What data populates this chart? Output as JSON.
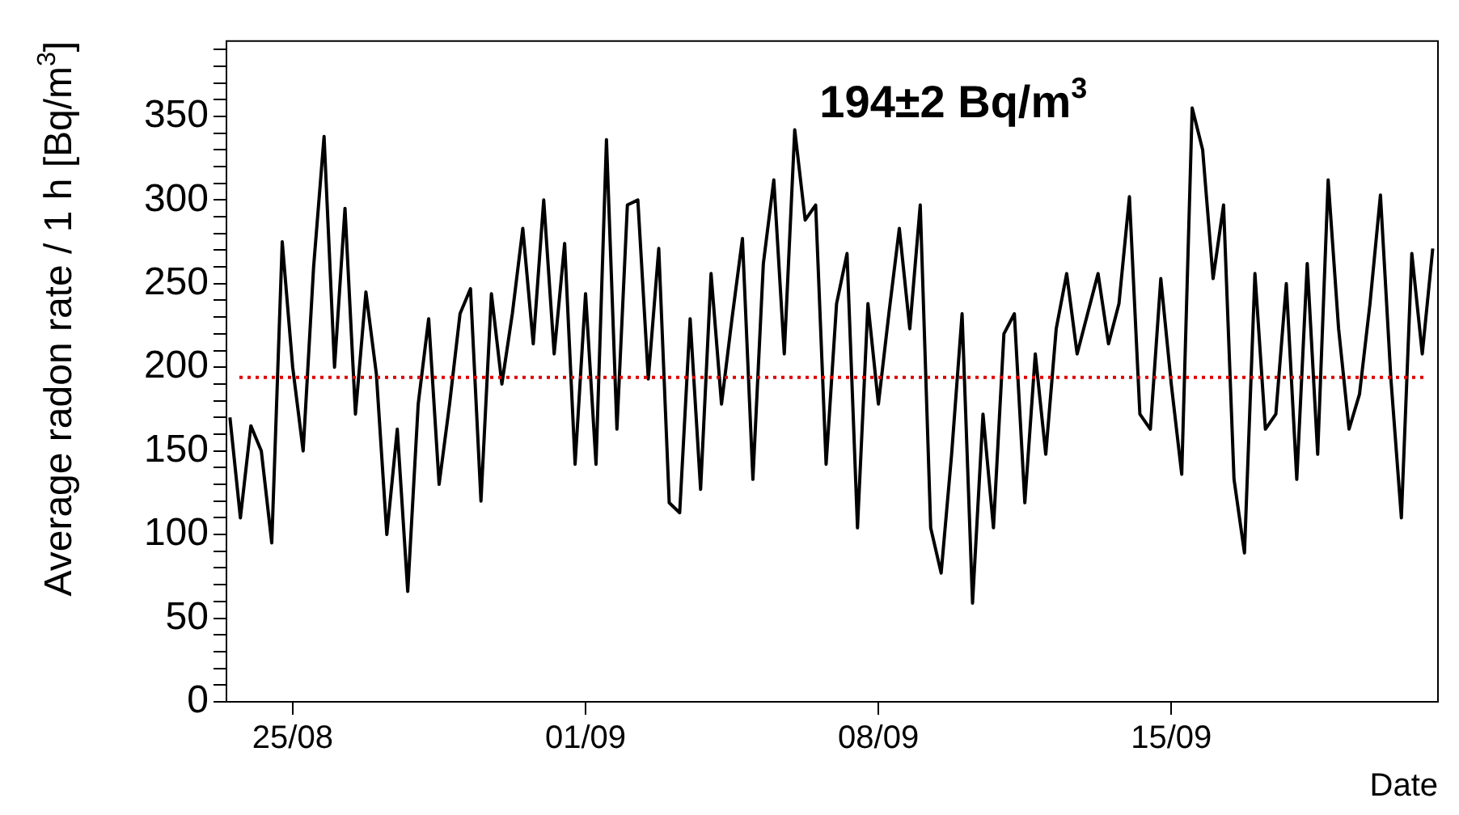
{
  "chart_data": {
    "type": "line",
    "xlabel": "Date",
    "ylabel": "Average radon rate / 1 h [Bq/m$^{3}$]",
    "x": [
      "--08-23T12:00",
      "--08-23T18:00",
      "--08-24T00:00",
      "--08-24T06:00",
      "--08-24T12:00",
      "--08-24T18:00",
      "--08-25T00:00",
      "--08-25T06:00",
      "--08-25T12:00",
      "--08-25T18:00",
      "--08-26T00:00",
      "--08-26T06:00",
      "--08-26T12:00",
      "--08-26T18:00",
      "--08-27T00:00",
      "--08-27T06:00",
      "--08-27T12:00",
      "--08-27T18:00",
      "--08-28T00:00",
      "--08-28T06:00",
      "--08-28T12:00",
      "--08-28T18:00",
      "--08-29T00:00",
      "--08-29T06:00",
      "--08-29T12:00",
      "--08-29T18:00",
      "--08-30T00:00",
      "--08-30T06:00",
      "--08-30T12:00",
      "--08-30T18:00",
      "--08-31T00:00",
      "--08-31T06:00",
      "--08-31T12:00",
      "--08-31T18:00",
      "--09-01T00:00",
      "--09-01T06:00",
      "--09-01T12:00",
      "--09-01T18:00",
      "--09-02T00:00",
      "--09-02T06:00",
      "--09-02T12:00",
      "--09-02T18:00",
      "--09-03T00:00",
      "--09-03T06:00",
      "--09-03T12:00",
      "--09-03T18:00",
      "--09-04T00:00",
      "--09-04T06:00",
      "--09-04T12:00",
      "--09-04T18:00",
      "--09-05T00:00",
      "--09-05T06:00",
      "--09-05T12:00",
      "--09-05T18:00",
      "--09-06T00:00",
      "--09-06T06:00",
      "--09-06T12:00",
      "--09-06T18:00",
      "--09-07T00:00",
      "--09-07T06:00",
      "--09-07T12:00",
      "--09-07T18:00",
      "--09-08T00:00",
      "--09-08T06:00",
      "--09-08T12:00",
      "--09-08T18:00",
      "--09-09T00:00",
      "--09-09T06:00",
      "--09-09T12:00",
      "--09-09T18:00",
      "--09-10T00:00",
      "--09-10T06:00",
      "--09-10T12:00",
      "--09-10T18:00",
      "--09-11T00:00",
      "--09-11T06:00",
      "--09-11T12:00",
      "--09-11T18:00",
      "--09-12T00:00",
      "--09-12T06:00",
      "--09-12T12:00",
      "--09-12T18:00",
      "--09-13T00:00",
      "--09-13T06:00",
      "--09-13T12:00",
      "--09-13T18:00",
      "--09-14T00:00",
      "--09-14T06:00",
      "--09-14T12:00",
      "--09-14T18:00",
      "--09-15T00:00",
      "--09-15T06:00",
      "--09-15T12:00",
      "--09-15T18:00",
      "--09-16T00:00",
      "--09-16T06:00",
      "--09-16T12:00",
      "--09-16T18:00",
      "--09-17T00:00",
      "--09-17T06:00",
      "--09-17T12:00",
      "--09-17T18:00",
      "--09-18T00:00",
      "--09-18T06:00",
      "--09-18T12:00",
      "--09-18T18:00",
      "--09-19T00:00",
      "--09-19T06:00",
      "--09-19T12:00",
      "--09-19T18:00",
      "--09-20T00:00",
      "--09-20T06:00",
      "--09-20T12:00",
      "--09-20T18:00",
      "--09-21T00:00",
      "--09-21T06:00"
    ],
    "series": [
      {
        "color": "#000000",
        "values": [
          170,
          110,
          165,
          150,
          95,
          275,
          200,
          150,
          260,
          338,
          200,
          295,
          172,
          245,
          196,
          100,
          163,
          66,
          178,
          229,
          130,
          178,
          232,
          247,
          120,
          244,
          190,
          232,
          283,
          214,
          300,
          208,
          274,
          142,
          244,
          142,
          336,
          163,
          297,
          300,
          193,
          271,
          119,
          113,
          229,
          127,
          256,
          178,
          229,
          277,
          133,
          262,
          312,
          208,
          342,
          288,
          297,
          142,
          238,
          268,
          104,
          238,
          178,
          232,
          283,
          223,
          297,
          104,
          77,
          148,
          232,
          59,
          172,
          104,
          220,
          232,
          119,
          208,
          148,
          223,
          256,
          208,
          232,
          256,
          214,
          238,
          302,
          172,
          163,
          253,
          190,
          136,
          355,
          330,
          253,
          297,
          133,
          89,
          256,
          163,
          172,
          250,
          133,
          262,
          148,
          312,
          223,
          163,
          184,
          238,
          303,
          193,
          110,
          268,
          208,
          271
        ]
      }
    ],
    "xlim": [
      "--08-23T10:00",
      "--09-21T09:00"
    ],
    "xticks": [
      {
        "value": "--08-25",
        "label": "25/08"
      },
      {
        "value": "--09-01",
        "label": "01/09"
      },
      {
        "value": "--09-08",
        "label": "08/09"
      },
      {
        "value": "--09-15",
        "label": "15/09"
      }
    ],
    "ylim": [
      0,
      395
    ],
    "yticks": [
      0,
      {
        "value": 10,
        "label": null
      },
      {
        "value": 20,
        "label": null
      },
      {
        "value": 30,
        "label": null
      },
      {
        "value": 40,
        "label": null
      },
      50,
      {
        "value": 60,
        "label": null
      },
      {
        "value": 70,
        "label": null
      },
      {
        "value": 80,
        "label": null
      },
      {
        "value": 90,
        "label": null
      },
      100,
      {
        "value": 110,
        "label": null
      },
      {
        "value": 120,
        "label": null
      },
      {
        "value": 130,
        "label": null
      },
      {
        "value": 140,
        "label": null
      },
      150,
      {
        "value": 160,
        "label": null
      },
      {
        "value": 170,
        "label": null
      },
      {
        "value": 180,
        "label": null
      },
      {
        "value": 190,
        "label": null
      },
      200,
      {
        "value": 210,
        "label": null
      },
      {
        "value": 220,
        "label": null
      },
      {
        "value": 230,
        "label": null
      },
      {
        "value": 240,
        "label": null
      },
      250,
      {
        "value": 260,
        "label": null
      },
      {
        "value": 270,
        "label": null
      },
      {
        "value": 280,
        "label": null
      },
      {
        "value": 290,
        "label": null
      },
      300,
      {
        "value": 310,
        "label": null
      },
      {
        "value": 320,
        "label": null
      },
      {
        "value": 330,
        "label": null
      },
      {
        "value": 340,
        "label": null
      },
      350,
      {
        "value": 360,
        "label": null
      },
      {
        "value": 370,
        "label": null
      },
      {
        "value": 380,
        "label": null
      },
      {
        "value": 390,
        "label": null
      }
    ],
    "annotations": [
      "194±2 Bq/m$^{3}$"
    ],
    "ref_lines": [
      {
        "axis": "y",
        "value": 194,
        "color": "#e00000",
        "line_style": "dotted"
      }
    ],
    "grid": false,
    "legend": false,
    "marker": "none",
    "line_style": "solid"
  }
}
